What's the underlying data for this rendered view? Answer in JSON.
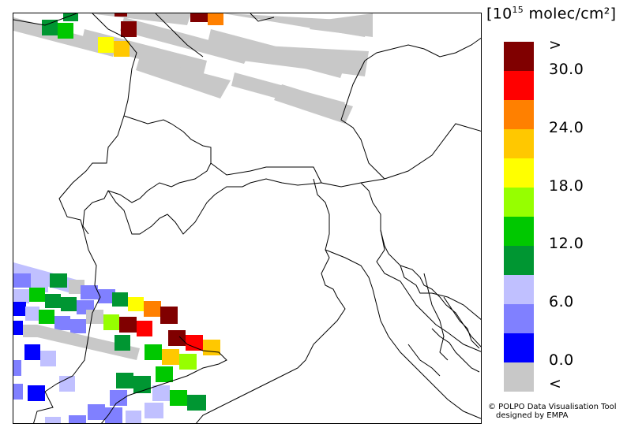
{
  "unit_label": {
    "prefix": "[10",
    "exponent": "15",
    "suffix": " molec/cm²]"
  },
  "legend": {
    "colors": [
      "#c8c8c8",
      "#0000ff",
      "#8080ff",
      "#c0c0ff",
      "#009632",
      "#00c800",
      "#96ff00",
      "#ffff00",
      "#ffc800",
      "#ff8000",
      "#ff0000",
      "#800000"
    ],
    "labels": [
      ">",
      "30.0",
      "24.0",
      "18.0",
      "12.0",
      "6.0",
      "0.0",
      "<"
    ]
  },
  "credit": {
    "line1": "© POLPO Data Visualisation Tool",
    "line2": "designed by EMPA"
  }
}
